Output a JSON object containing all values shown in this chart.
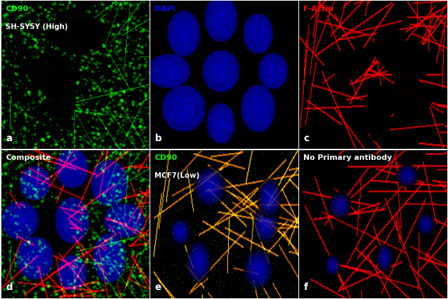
{
  "panels": [
    {
      "label": "a",
      "title_line1": "CD90",
      "title_line2": "SH-SY5Y (High)",
      "title_color1": "#00ff00",
      "title_color2": "#ffffff",
      "bg_color": "#000000",
      "channel": "green",
      "row": 0,
      "col": 0
    },
    {
      "label": "b",
      "title_line1": "DAPI",
      "title_line2": "",
      "title_color1": "#0000ff",
      "title_color2": "#ffffff",
      "bg_color": "#000000",
      "channel": "blue",
      "row": 0,
      "col": 1
    },
    {
      "label": "c",
      "title_line1": "F-Actin",
      "title_line2": "",
      "title_color1": "#ff0000",
      "title_color2": "#ffffff",
      "bg_color": "#000000",
      "channel": "red",
      "row": 0,
      "col": 2
    },
    {
      "label": "d",
      "title_line1": "Composite",
      "title_line2": "",
      "title_color1": "#ffffff",
      "title_color2": "#ffffff",
      "bg_color": "#000000",
      "channel": "composite",
      "row": 1,
      "col": 0
    },
    {
      "label": "e",
      "title_line1": "CD90",
      "title_line2": "MCF7(Low)",
      "title_color1": "#00ff00",
      "title_color2": "#ffffff",
      "bg_color": "#000000",
      "channel": "mcf7",
      "row": 1,
      "col": 1
    },
    {
      "label": "f",
      "title_line1": "No Primary antibody",
      "title_line2": "",
      "title_color1": "#ffffff",
      "title_color2": "#ffffff",
      "bg_color": "#000000",
      "channel": "no_primary",
      "row": 1,
      "col": 2
    }
  ],
  "grid_color": "#ffffff",
  "figsize": [
    6.5,
    4.34
  ],
  "dpi": 100
}
